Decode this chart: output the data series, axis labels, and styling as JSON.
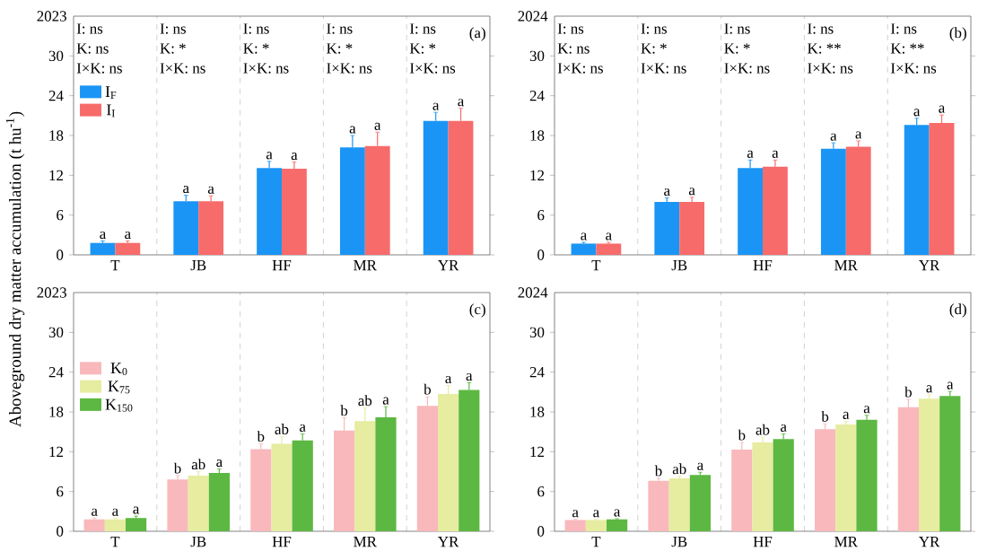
{
  "chart_data": [
    {
      "type": "bar",
      "ylabel": "Aboveground dry matter accumulation (t hu$^{-1}$)",
      "categories": [
        "T",
        "JB",
        "HF",
        "MR",
        "YR"
      ],
      "ylim": [
        0,
        36
      ],
      "yticks": [
        0,
        6,
        12,
        18,
        24,
        30
      ],
      "grid": "x",
      "legend": "top left",
      "series": [
        {
          "name": "I$_{F}$",
          "color": "#1a95f5",
          "values": [
            1.8,
            8.1,
            13.1,
            16.2,
            20.2
          ],
          "errors": [
            0.3,
            0.9,
            1.0,
            1.8,
            1.3
          ],
          "value_labels": [
            "a",
            "a",
            "a",
            "a",
            "a"
          ]
        },
        {
          "name": "I$_{I}$",
          "color": "#f76b6b",
          "values": [
            1.8,
            8.1,
            13.0,
            16.4,
            20.2
          ],
          "errors": [
            0.3,
            0.8,
            1.0,
            2.1,
            1.9
          ],
          "value_labels": [
            "a",
            "a",
            "a",
            "a",
            "a"
          ]
        }
      ],
      "annotations": [
        "2023",
        "(a)",
        "I: ns",
        "K: ns",
        "I×K: ns",
        "I: ns",
        "K: *",
        "I×K: ns",
        "I: ns",
        "K: *",
        "I×K: ns",
        "I: ns",
        "K: *",
        "I×K: ns",
        "I: ns",
        "K: *",
        "I×K: ns"
      ]
    },
    {
      "type": "bar",
      "categories": [
        "T",
        "JB",
        "HF",
        "MR",
        "YR"
      ],
      "ylim": [
        0,
        36
      ],
      "yticks": [
        0,
        6,
        12,
        18,
        24,
        30
      ],
      "grid": "x",
      "series": [
        {
          "color": "#1a95f5",
          "values": [
            1.7,
            8.0,
            13.1,
            16.0,
            19.6
          ],
          "errors": [
            0.2,
            0.6,
            1.2,
            0.9,
            1.0
          ],
          "value_labels": [
            "a",
            "a",
            "a",
            "a",
            "a"
          ]
        },
        {
          "color": "#f76b6b",
          "values": [
            1.7,
            8.0,
            13.3,
            16.3,
            19.9
          ],
          "errors": [
            0.2,
            0.7,
            1.0,
            0.9,
            1.2
          ],
          "value_labels": [
            "a",
            "a",
            "a",
            "a",
            "a"
          ]
        }
      ],
      "annotations": [
        "2024",
        "(b)",
        "I: ns",
        "K: ns",
        "I×K: ns",
        "I: ns",
        "K: *",
        "I×K: ns",
        "I: ns",
        "K: *",
        "I×K: ns",
        "I: ns",
        "K: **",
        "I×K: ns",
        "I: ns",
        "K: **",
        "I×K: ns"
      ]
    },
    {
      "type": "bar",
      "categories": [
        "T",
        "JB",
        "HF",
        "MR",
        "YR"
      ],
      "ylim": [
        0,
        36
      ],
      "yticks": [
        0,
        6,
        12,
        18,
        24,
        30
      ],
      "grid": "x",
      "legend": "top left",
      "series": [
        {
          "name": "K$_{0}$",
          "color": "#f9b8bb",
          "values": [
            1.8,
            7.8,
            12.4,
            15.2,
            18.9
          ],
          "errors": [
            0.2,
            0.6,
            0.8,
            1.9,
            1.4
          ],
          "value_labels": [
            "a",
            "b",
            "b",
            "b",
            "b"
          ]
        },
        {
          "name": "K$_{75}$",
          "color": "#e6eca0",
          "values": [
            1.8,
            8.4,
            13.2,
            16.6,
            20.7
          ],
          "errors": [
            0.2,
            0.6,
            1.1,
            2.0,
            1.3
          ],
          "value_labels": [
            "a",
            "ab",
            "ab",
            "ab",
            "a"
          ]
        },
        {
          "name": "K$_{150}$",
          "color": "#5cb842",
          "values": [
            2.0,
            8.8,
            13.7,
            17.2,
            21.3
          ],
          "errors": [
            0.3,
            0.6,
            1.0,
            1.6,
            1.1
          ],
          "value_labels": [
            "a",
            "a",
            "a",
            "a",
            "a"
          ]
        }
      ],
      "annotations": [
        "2023",
        "(c)"
      ]
    },
    {
      "type": "bar",
      "categories": [
        "T",
        "JB",
        "HF",
        "MR",
        "YR"
      ],
      "ylim": [
        0,
        36
      ],
      "yticks": [
        0,
        6,
        12,
        18,
        24,
        30
      ],
      "grid": "x",
      "series": [
        {
          "color": "#f9b8bb",
          "values": [
            1.7,
            7.6,
            12.3,
            15.4,
            18.7
          ],
          "errors": [
            0.1,
            0.4,
            1.1,
            0.8,
            1.2
          ],
          "value_labels": [
            "a",
            "b",
            "b",
            "b",
            "b"
          ]
        },
        {
          "color": "#e6eca0",
          "values": [
            1.7,
            8.0,
            13.4,
            16.1,
            20.0
          ],
          "errors": [
            0.1,
            0.3,
            0.8,
            0.5,
            0.6
          ],
          "value_labels": [
            "a",
            "ab",
            "ab",
            "a",
            "a"
          ]
        },
        {
          "color": "#5cb842",
          "values": [
            1.8,
            8.5,
            13.9,
            16.8,
            20.4
          ],
          "errors": [
            0.1,
            0.4,
            0.8,
            0.7,
            0.7
          ],
          "value_labels": [
            "a",
            "a",
            "a",
            "a",
            "a"
          ]
        }
      ],
      "annotations": [
        "2024",
        "(d)"
      ]
    }
  ]
}
